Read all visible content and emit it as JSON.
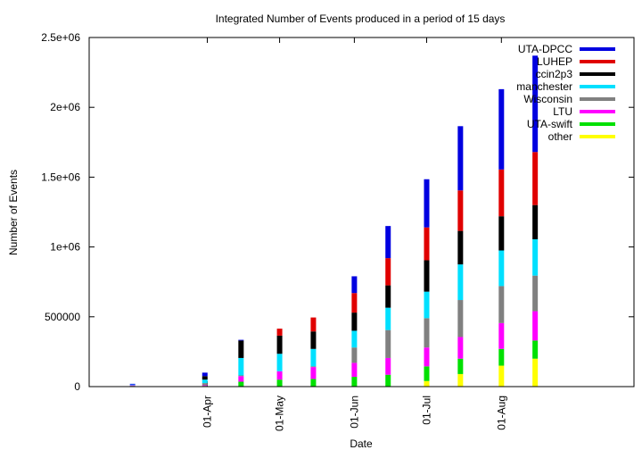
{
  "chart_data": {
    "type": "bar",
    "stacked": true,
    "title": "Integrated Number of Events produced in a period of 15 days",
    "xlabel": "Date",
    "ylabel": "Number of Events",
    "ylim": [
      0,
      2500000
    ],
    "yticks": [
      {
        "value": 0,
        "label": "0"
      },
      {
        "value": 500000,
        "label": "500000"
      },
      {
        "value": 1000000,
        "label": "1e+06"
      },
      {
        "value": 1500000,
        "label": "1.5e+06"
      },
      {
        "value": 2000000,
        "label": "2e+06"
      },
      {
        "value": 2500000,
        "label": "2.5e+06"
      }
    ],
    "xrange": [
      "2004-02-12",
      "2004-09-25"
    ],
    "xticks": [
      {
        "date": "2004-04-01",
        "label": "01-Apr"
      },
      {
        "date": "2004-05-01",
        "label": "01-May"
      },
      {
        "date": "2004-06-01",
        "label": "01-Jun"
      },
      {
        "date": "2004-07-01",
        "label": "01-Jul"
      },
      {
        "date": "2004-08-01",
        "label": "01-Aug"
      }
    ],
    "legend_position": "top-right",
    "grid": false,
    "x": [
      "2004-03-01",
      "2004-03-31",
      "2004-04-15",
      "2004-05-01",
      "2004-05-15",
      "2004-06-01",
      "2004-06-15",
      "2004-07-01",
      "2004-07-15",
      "2004-08-01",
      "2004-08-15"
    ],
    "series": [
      {
        "name": "other",
        "color": "#ffff00",
        "values": [
          0,
          0,
          0,
          0,
          0,
          0,
          0,
          40000,
          90000,
          150000,
          200000
        ]
      },
      {
        "name": "UTA-swift",
        "color": "#00e000",
        "values": [
          5000,
          5000,
          35000,
          50000,
          55000,
          70000,
          85000,
          105000,
          110000,
          120000,
          130000
        ]
      },
      {
        "name": "LTU",
        "color": "#ff00ff",
        "values": [
          5000,
          5000,
          40000,
          60000,
          85000,
          100000,
          120000,
          135000,
          155000,
          185000,
          210000
        ]
      },
      {
        "name": "Wisconsin",
        "color": "#808080",
        "values": [
          0,
          15000,
          5000,
          0,
          5000,
          110000,
          200000,
          210000,
          265000,
          265000,
          255000
        ]
      },
      {
        "name": "manchester",
        "color": "#00e0ff",
        "values": [
          5000,
          25000,
          125000,
          125000,
          125000,
          120000,
          160000,
          190000,
          255000,
          255000,
          260000
        ]
      },
      {
        "name": "ccin2p3",
        "color": "#000000",
        "values": [
          0,
          25000,
          125000,
          130000,
          125000,
          130000,
          160000,
          225000,
          240000,
          245000,
          245000
        ]
      },
      {
        "name": "LUHEP",
        "color": "#e00000",
        "values": [
          0,
          0,
          0,
          50000,
          100000,
          140000,
          195000,
          235000,
          290000,
          335000,
          380000
        ]
      },
      {
        "name": "UTA-DPCC",
        "color": "#0000e0",
        "values": [
          5000,
          25000,
          5000,
          0,
          0,
          120000,
          230000,
          345000,
          460000,
          575000,
          690000
        ]
      }
    ]
  }
}
